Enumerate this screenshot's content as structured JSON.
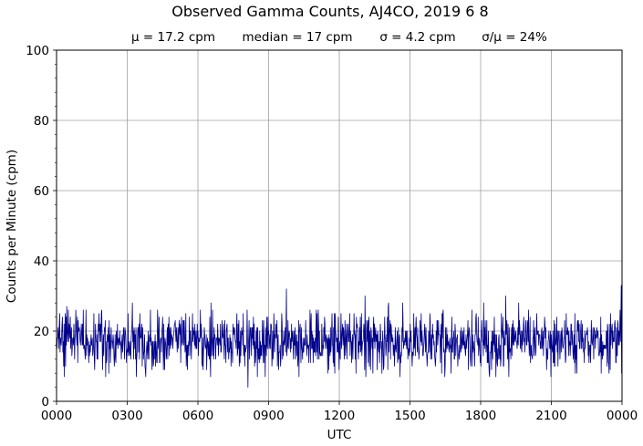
{
  "chart_data": {
    "type": "line",
    "title": "Observed Gamma Counts, AJ4CO, 2019 6 8",
    "stats": [
      "μ = 17.2 cpm",
      "median = 17 cpm",
      "σ = 4.2 cpm",
      "σ/μ = 24%"
    ],
    "xlabel": "UTC",
    "ylabel": "Counts per Minute (cpm)",
    "x_tick_labels": [
      "0000",
      "0300",
      "0600",
      "0900",
      "1200",
      "1500",
      "1800",
      "2100",
      "0000"
    ],
    "y_ticks": [
      0,
      20,
      40,
      60,
      80,
      100
    ],
    "xlim": [
      0,
      1440
    ],
    "ylim": [
      0,
      100
    ],
    "x_unit": "minutes since 0000 UTC",
    "grid": true,
    "series": [
      {
        "name": "",
        "color": "#00008b",
        "sampling": "1 minute",
        "points_count": 1440,
        "mean": 17.2,
        "median": 17,
        "std": 4.2,
        "min": 4,
        "max": 33,
        "notable_points": [
          {
            "x": 487,
            "y": 4
          },
          {
            "x": 585,
            "y": 32
          },
          {
            "x": 785,
            "y": 30
          },
          {
            "x": 1143,
            "y": 30
          },
          {
            "x": 1437,
            "y": 33
          }
        ]
      }
    ]
  }
}
